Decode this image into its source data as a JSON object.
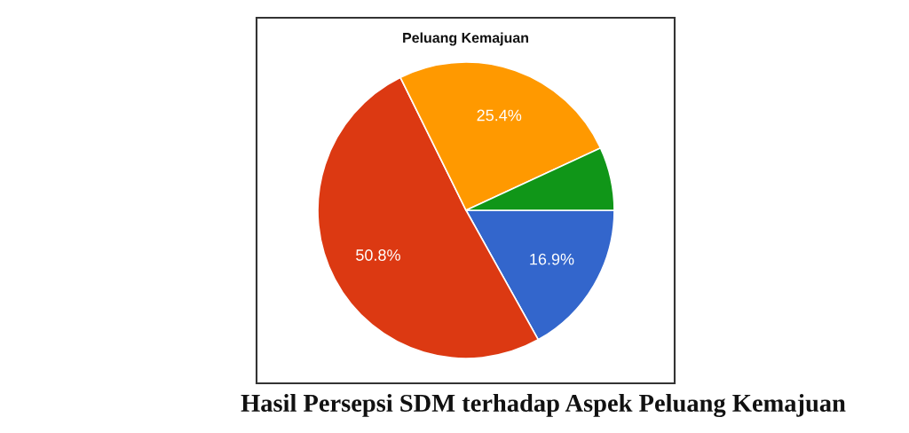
{
  "chart_data": {
    "type": "pie",
    "title": "Peluang Kemajuan",
    "categories": [
      null,
      null,
      null,
      null
    ],
    "values": [
      16.9,
      50.8,
      25.4,
      6.9
    ],
    "colors": [
      "#3366cc",
      "#dc3912",
      "#ff9900",
      "#109618"
    ],
    "value_labels": [
      "16.9%",
      "50.8%",
      "25.4%",
      null
    ],
    "annotations": [
      "Hasil Persepsi SDM terhadap Aspek Peluang Kemajuan"
    ]
  }
}
